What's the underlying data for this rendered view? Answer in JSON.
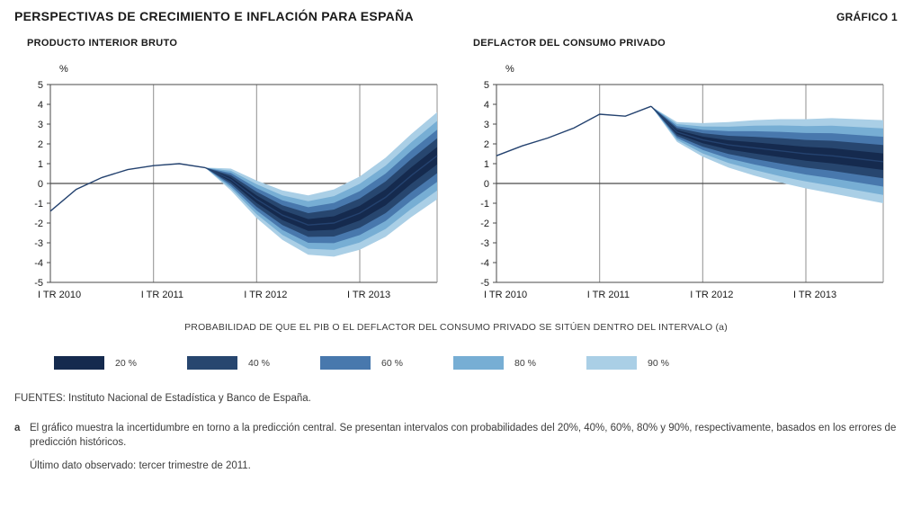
{
  "header": {
    "title": "PERSPECTIVAS DE CRECIMIENTO E INFLACIÓN PARA ESPAÑA",
    "chart_label": "GRÁFICO 1"
  },
  "legend": {
    "title": "PROBABILIDAD DE QUE EL PIB O EL DEFLACTOR DEL CONSUMO PRIVADO SE SITÚEN DENTRO DEL INTERVALO (a)",
    "items": [
      {
        "label": "20 %",
        "color": "#152a4e"
      },
      {
        "label": "40 %",
        "color": "#27466f"
      },
      {
        "label": "60 %",
        "color": "#4878ad"
      },
      {
        "label": "80 %",
        "color": "#77aed4"
      },
      {
        "label": "90 %",
        "color": "#aacfe6"
      }
    ]
  },
  "colors": {
    "line": "#24426f",
    "grid": "#8f8f8f",
    "axis": "#4a4a4a",
    "zero": "#4a4a4a",
    "text": "#1a1a1a"
  },
  "chart_data": [
    {
      "type": "fan",
      "title": "PRODUCTO INTERIOR BRUTO",
      "ylabel": "%",
      "ylim": [
        -5,
        5
      ],
      "ytick_step": 1,
      "grid": "vertical-yearlines",
      "x_labels": [
        "I TR 2010",
        "I TR 2011",
        "I TR 2012",
        "I TR 2013"
      ],
      "x_quarters": 16,
      "observed": {
        "start_index": 0,
        "values": [
          -1.4,
          -0.3,
          0.3,
          0.7,
          0.9,
          1.0,
          0.8
        ]
      },
      "projection": {
        "start_index": 6,
        "central": [
          0.8,
          0.2,
          -0.8,
          -1.6,
          -2.1,
          -2.0,
          -1.5,
          -0.7,
          0.4,
          1.4
        ],
        "w90": [
          0,
          0.55,
          0.95,
          1.25,
          1.5,
          1.7,
          1.85,
          2.0,
          2.1,
          2.2
        ],
        "band_fractions": [
          0.2,
          0.4,
          0.6,
          0.8,
          1.0
        ],
        "band_labels": [
          "20 %",
          "40 %",
          "60 %",
          "80 %",
          "90 %"
        ]
      }
    },
    {
      "type": "fan",
      "title": "DEFLACTOR DEL CONSUMO PRIVADO",
      "ylabel": "%",
      "ylim": [
        -5,
        5
      ],
      "ytick_step": 1,
      "grid": "vertical-yearlines",
      "x_labels": [
        "I TR 2010",
        "I TR 2011",
        "I TR 2012",
        "I TR 2013"
      ],
      "x_quarters": 16,
      "observed": {
        "start_index": 0,
        "values": [
          1.4,
          1.9,
          2.3,
          2.8,
          3.5,
          3.4,
          3.9
        ]
      },
      "projection": {
        "start_index": 6,
        "central": [
          3.9,
          2.6,
          2.2,
          1.95,
          1.8,
          1.65,
          1.5,
          1.4,
          1.25,
          1.1
        ],
        "w90": [
          0,
          0.5,
          0.85,
          1.15,
          1.4,
          1.6,
          1.75,
          1.9,
          2.0,
          2.1
        ],
        "band_fractions": [
          0.2,
          0.4,
          0.6,
          0.8,
          1.0
        ],
        "band_labels": [
          "20 %",
          "40 %",
          "60 %",
          "80 %",
          "90 %"
        ]
      }
    }
  ],
  "footer": {
    "sources": "FUENTES: Instituto Nacional de Estadística y Banco de España.",
    "note_marker": "a",
    "note": "El gráfico muestra la incertidumbre en torno a la predicción central. Se presentan intervalos con probabilidades del 20%, 40%, 60%, 80% y 90%, respectivamente, basados en los errores de predicción históricos.",
    "last_observed": "Último dato observado: tercer trimestre de 2011."
  }
}
